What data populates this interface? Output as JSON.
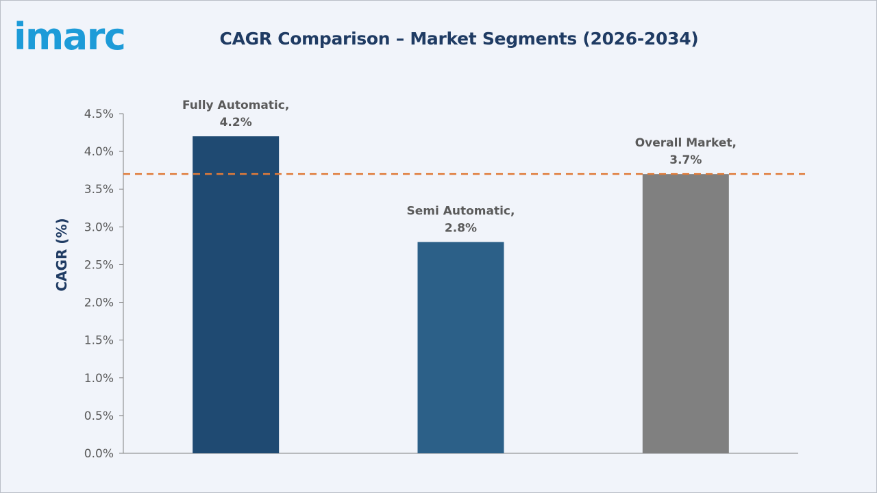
{
  "header": {
    "brand": "imarc",
    "title": "CAGR Comparison – Market Segments (2026-2034)"
  },
  "colors": {
    "brand_blue": "#1d9bd8",
    "title_navy": "#1f3b63",
    "bar_fully": "#1f4a72",
    "bar_semi": "#2c6088",
    "bar_overall": "#808080",
    "reference_line": "#e07b39",
    "label_gray": "#5a5a5a"
  },
  "chart_data": {
    "type": "bar",
    "title": "CAGR Comparison – Market Segments (2026-2034)",
    "ylabel": "CAGR (%)",
    "xlabel": "",
    "ylim": [
      0,
      4.5
    ],
    "yticks": [
      "0.0%",
      "0.5%",
      "1.0%",
      "1.5%",
      "2.0%",
      "2.5%",
      "3.0%",
      "3.5%",
      "4.0%",
      "4.5%"
    ],
    "categories": [
      "Fully Automatic",
      "Semi Automatic",
      "Overall Market"
    ],
    "values": [
      4.2,
      2.8,
      3.7
    ],
    "data_labels": [
      [
        "Fully Automatic,",
        "4.2%"
      ],
      [
        "Semi Automatic,",
        "2.8%"
      ],
      [
        "Overall Market,",
        "3.7%"
      ]
    ],
    "reference_line": {
      "value": 3.7,
      "style": "dashed"
    },
    "grid": false,
    "legend": "none"
  }
}
